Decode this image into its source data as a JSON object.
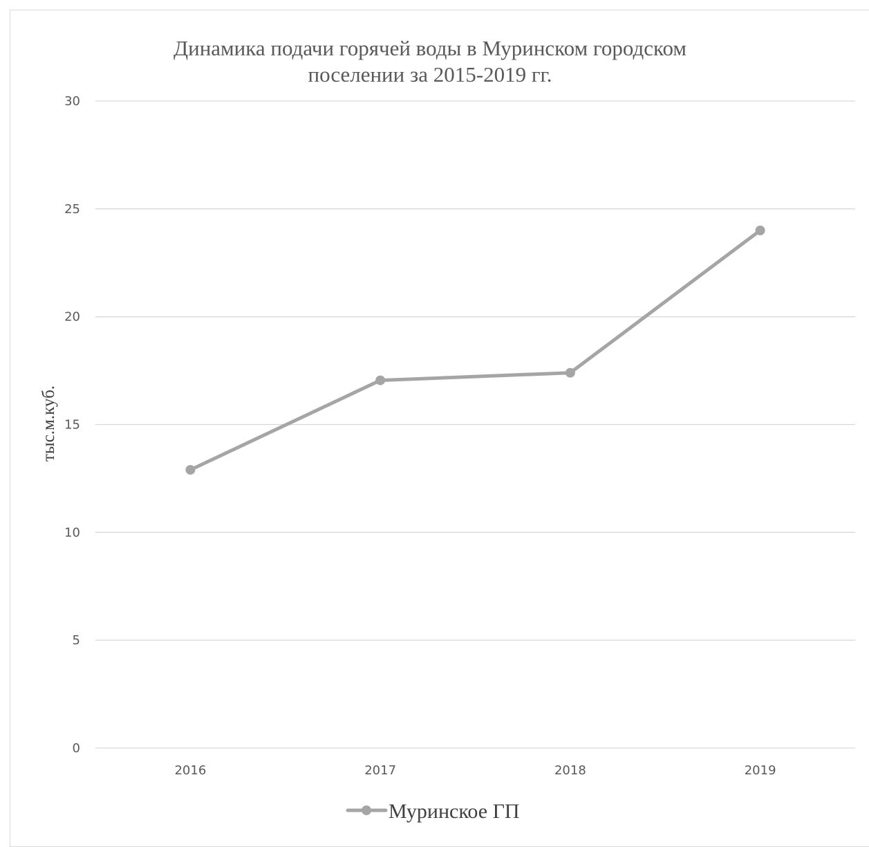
{
  "chart_data": {
    "type": "line",
    "title_line1": "Динамика подачи горячей воды в Муринском городском",
    "title_line2": "поселении за 2015-2019 гг.",
    "xlabel": "",
    "ylabel": "тыс.м.куб.",
    "categories": [
      "2016",
      "2017",
      "2018",
      "2019"
    ],
    "series": [
      {
        "name": "Муринское ГП",
        "values": [
          12.9,
          17.05,
          17.4,
          24.0
        ]
      }
    ],
    "ylim": [
      0,
      30
    ],
    "yticks": [
      "0",
      "5",
      "10",
      "15",
      "20",
      "25",
      "30"
    ],
    "grid": true,
    "legend_position": "bottom",
    "colors": {
      "series": "#a5a5a5",
      "grid": "#d9d9d9",
      "frame": "#d9d9d9"
    }
  }
}
